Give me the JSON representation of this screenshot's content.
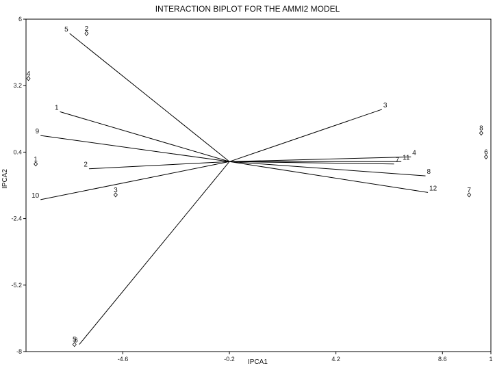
{
  "chart_data": {
    "type": "scatter",
    "title": "INTERACTION BIPLOT FOR THE AMMI2 MODEL",
    "xlabel": "IPCA1",
    "ylabel": "IPCA2",
    "xlim": [
      -8.6,
      10.6
    ],
    "ylim": [
      -8,
      6
    ],
    "x_ticks": [
      "-4.6",
      "-0.2",
      "4.2",
      "8.6",
      "1"
    ],
    "y_ticks": [
      "6",
      "3.2",
      "0.4",
      "-2.4",
      "-5.2",
      "-8"
    ],
    "grid": false,
    "origin": {
      "x": -0.2,
      "y": 0.0
    },
    "vectors": [
      {
        "label": "5",
        "x": -6.8,
        "y": 5.4
      },
      {
        "label": "1",
        "x": -7.2,
        "y": 2.1
      },
      {
        "label": "9",
        "x": -8.0,
        "y": 1.1
      },
      {
        "label": "2",
        "x": -6.0,
        "y": -0.3
      },
      {
        "label": "10",
        "x": -8.0,
        "y": -1.6
      },
      {
        "label": "6",
        "x": -6.4,
        "y": -7.7
      },
      {
        "label": "3",
        "x": 6.1,
        "y": 2.2
      },
      {
        "label": "4",
        "x": 7.3,
        "y": 0.2
      },
      {
        "label": "11",
        "x": 6.9,
        "y": 0.0
      },
      {
        "label": "7",
        "x": 6.6,
        "y": -0.1
      },
      {
        "label": "8",
        "x": 7.9,
        "y": -0.6
      },
      {
        "label": "12",
        "x": 8.0,
        "y": -1.3
      }
    ],
    "points": [
      {
        "label": "2",
        "x": -6.1,
        "y": 5.4
      },
      {
        "label": "4",
        "x": -8.5,
        "y": 3.5
      },
      {
        "label": "1",
        "x": -8.2,
        "y": -0.1
      },
      {
        "label": "3",
        "x": -4.9,
        "y": -1.4
      },
      {
        "label": "5",
        "x": -6.6,
        "y": -7.7
      },
      {
        "label": "8",
        "x": 10.2,
        "y": 1.2
      },
      {
        "label": "6",
        "x": 10.4,
        "y": 0.2
      },
      {
        "label": "7",
        "x": 9.7,
        "y": -1.4
      }
    ]
  }
}
